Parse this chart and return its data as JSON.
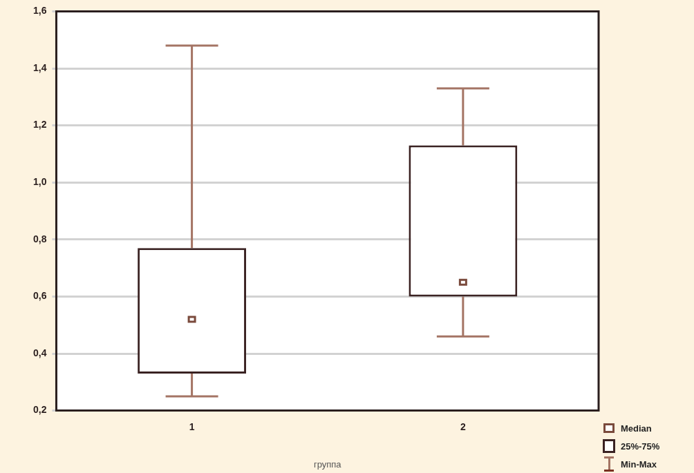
{
  "chart_data": {
    "type": "box",
    "xlabel": "группа",
    "categories": [
      "1",
      "2"
    ],
    "boxes": [
      {
        "low": 0.25,
        "q1": 0.33,
        "median": 0.52,
        "q3": 0.77,
        "high": 1.48
      },
      {
        "low": 0.46,
        "q1": 0.6,
        "median": 0.65,
        "q3": 1.13,
        "high": 1.33
      }
    ],
    "color": "#3a2222",
    "ylim": [
      0.2,
      1.6
    ],
    "yticks": [
      {
        "value": 0.2,
        "label": "0,2"
      },
      {
        "value": 0.4,
        "label": "0,4"
      },
      {
        "value": 0.6,
        "label": "0,6"
      },
      {
        "value": 0.8,
        "label": "0,8"
      },
      {
        "value": 1.0,
        "label": "1,0"
      },
      {
        "value": 1.2,
        "label": "1,2"
      },
      {
        "value": 1.4,
        "label": "1,4"
      },
      {
        "value": 1.6,
        "label": "1,6"
      }
    ],
    "grid": "y",
    "marker": "square",
    "annotations": [
      "Median",
      "25%-75%",
      "Min-Max"
    ]
  }
}
